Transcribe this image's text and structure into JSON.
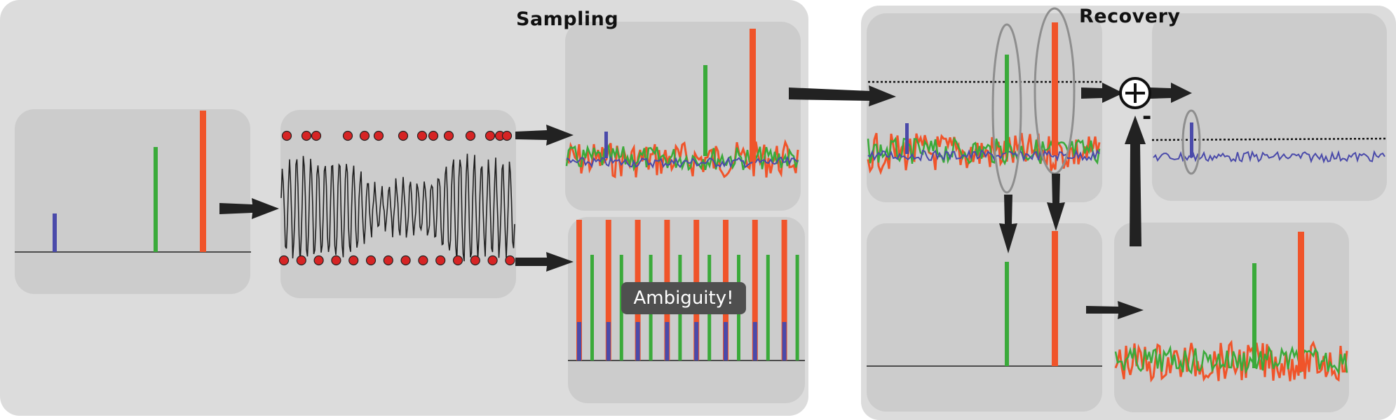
{
  "sampling": {
    "title": "Sampling"
  },
  "recovery": {
    "title": "Recovery"
  },
  "ambiguity_label": "Ambiguity!",
  "combine_minus": "-",
  "colors": {
    "background": "#ffffff",
    "section_bg": "#dcdcdc",
    "panel_bg": "#cccccc",
    "red": "#f0542a",
    "green": "#3aaa3a",
    "blue": "#4a4aaa",
    "sample_dot": "#d62424",
    "arrow": "#222222",
    "ellipse": "#8e8e8e"
  },
  "icons": {
    "combine": "circled-plus-icon",
    "arrow": "wedge-arrow-icon"
  }
}
